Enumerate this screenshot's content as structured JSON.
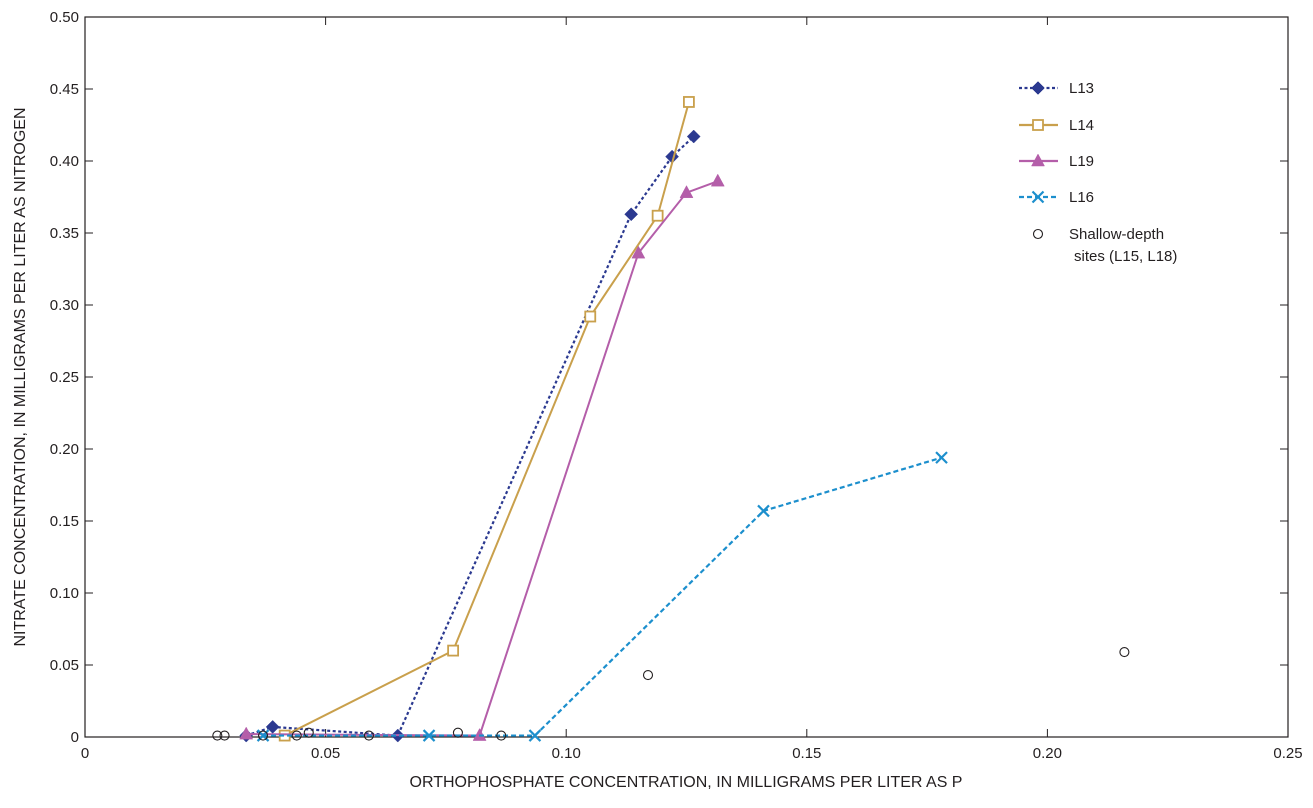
{
  "chart_data": {
    "type": "scatter",
    "title": "",
    "xlabel": "ORTHOPHOSPHATE CONCENTRATION, IN MILLIGRAMS PER LITER AS P",
    "ylabel": "NITRATE CONCENTRATION, IN MILLIGRAMS PER LITER AS NITROGEN",
    "xlim": [
      0,
      0.25
    ],
    "ylim": [
      0,
      0.5
    ],
    "x_ticks": [
      {
        "value": 0,
        "label": "0"
      },
      {
        "value": 0.05,
        "label": "0.05"
      },
      {
        "value": 0.1,
        "label": "0.10"
      },
      {
        "value": 0.15,
        "label": "0.15"
      },
      {
        "value": 0.2,
        "label": "0.20"
      },
      {
        "value": 0.25,
        "label": "0.25"
      }
    ],
    "y_ticks": [
      {
        "value": 0,
        "label": "0"
      },
      {
        "value": 0.05,
        "label": "0.05"
      },
      {
        "value": 0.1,
        "label": "0.10"
      },
      {
        "value": 0.15,
        "label": "0.15"
      },
      {
        "value": 0.2,
        "label": "0.20"
      },
      {
        "value": 0.25,
        "label": "0.25"
      },
      {
        "value": 0.3,
        "label": "0.30"
      },
      {
        "value": 0.35,
        "label": "0.35"
      },
      {
        "value": 0.4,
        "label": "0.40"
      },
      {
        "value": 0.45,
        "label": "0.45"
      },
      {
        "value": 0.5,
        "label": "0.50"
      }
    ],
    "grid": false,
    "legend_position": "top-right",
    "series": [
      {
        "name": "L13",
        "color": "#2b3990",
        "line": "dotted",
        "marker": "diamond-filled",
        "points": [
          [
            0.0335,
            0.001
          ],
          [
            0.039,
            0.007
          ],
          [
            0.065,
            0.001
          ],
          [
            0.1135,
            0.363
          ],
          [
            0.122,
            0.403
          ],
          [
            0.1265,
            0.417
          ]
        ]
      },
      {
        "name": "L14",
        "color": "#c9a04c",
        "line": "solid",
        "marker": "square-open",
        "points": [
          [
            0.0415,
            0.001
          ],
          [
            0.0765,
            0.06
          ],
          [
            0.105,
            0.292
          ],
          [
            0.119,
            0.362
          ],
          [
            0.1255,
            0.441
          ]
        ]
      },
      {
        "name": "L19",
        "color": "#b45ea9",
        "line": "solid",
        "marker": "triangle-filled",
        "points": [
          [
            0.0335,
            0.002
          ],
          [
            0.082,
            0.001
          ],
          [
            0.115,
            0.336
          ],
          [
            0.125,
            0.378
          ],
          [
            0.1315,
            0.386
          ]
        ]
      },
      {
        "name": "L16",
        "color": "#1c8fcd",
        "line": "dashed",
        "marker": "x",
        "points": [
          [
            0.037,
            0.001
          ],
          [
            0.0715,
            0.001
          ],
          [
            0.0935,
            0.001
          ],
          [
            0.141,
            0.157
          ],
          [
            0.178,
            0.194
          ]
        ]
      },
      {
        "name": "Shallow-depth sites (L15, L18)",
        "legend_lines": [
          "Shallow-depth",
          "sites (L15, L18)"
        ],
        "color": "#231f20",
        "line": "none",
        "marker": "circle-open",
        "points": [
          [
            0.0275,
            0.001
          ],
          [
            0.029,
            0.001
          ],
          [
            0.037,
            0.001
          ],
          [
            0.044,
            0.001
          ],
          [
            0.0465,
            0.003
          ],
          [
            0.059,
            0.001
          ],
          [
            0.0775,
            0.003
          ],
          [
            0.0865,
            0.001
          ],
          [
            0.117,
            0.043
          ],
          [
            0.216,
            0.059
          ]
        ]
      }
    ]
  }
}
